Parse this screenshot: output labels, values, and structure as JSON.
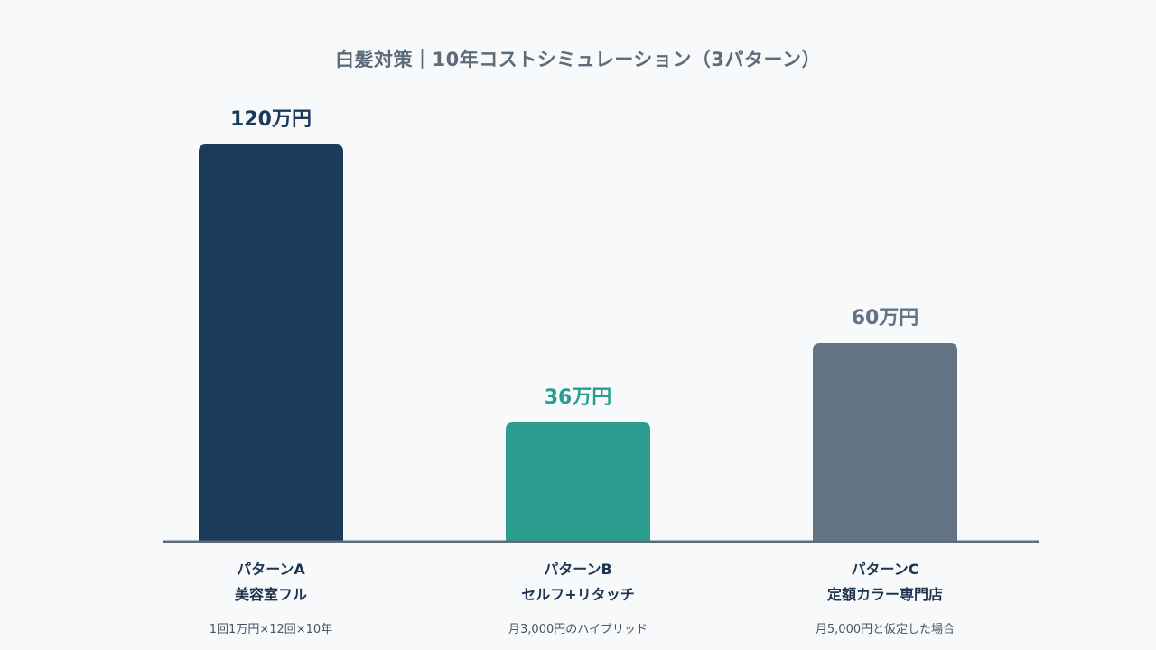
{
  "chart_data": {
    "type": "bar",
    "title": "白髪対策｜10年コストシミュレーション（3パターン）",
    "unit": "万円",
    "ylim": [
      0,
      120
    ],
    "grid": false,
    "legend": "none",
    "categories": [
      {
        "name": "パターンA",
        "subtitle": "美容室フル",
        "note": "1回1万円×12回×10年",
        "value": 120,
        "value_label": "120万円",
        "color": "#1b3a5c",
        "label_color": "#1b3a5c"
      },
      {
        "name": "パターンB",
        "subtitle": "セルフ+リタッチ",
        "note": "月3,000円のハイブリッド",
        "value": 36,
        "value_label": "36万円",
        "color": "#2a9d8f",
        "label_color": "#2a9d8f"
      },
      {
        "name": "パターンC",
        "subtitle": "定額カラー専門店",
        "note": "月5,000円と仮定した場合",
        "value": 60,
        "value_label": "60万円",
        "color": "#627383",
        "label_color": "#627383"
      }
    ],
    "axis_color": "#5e6b78"
  }
}
